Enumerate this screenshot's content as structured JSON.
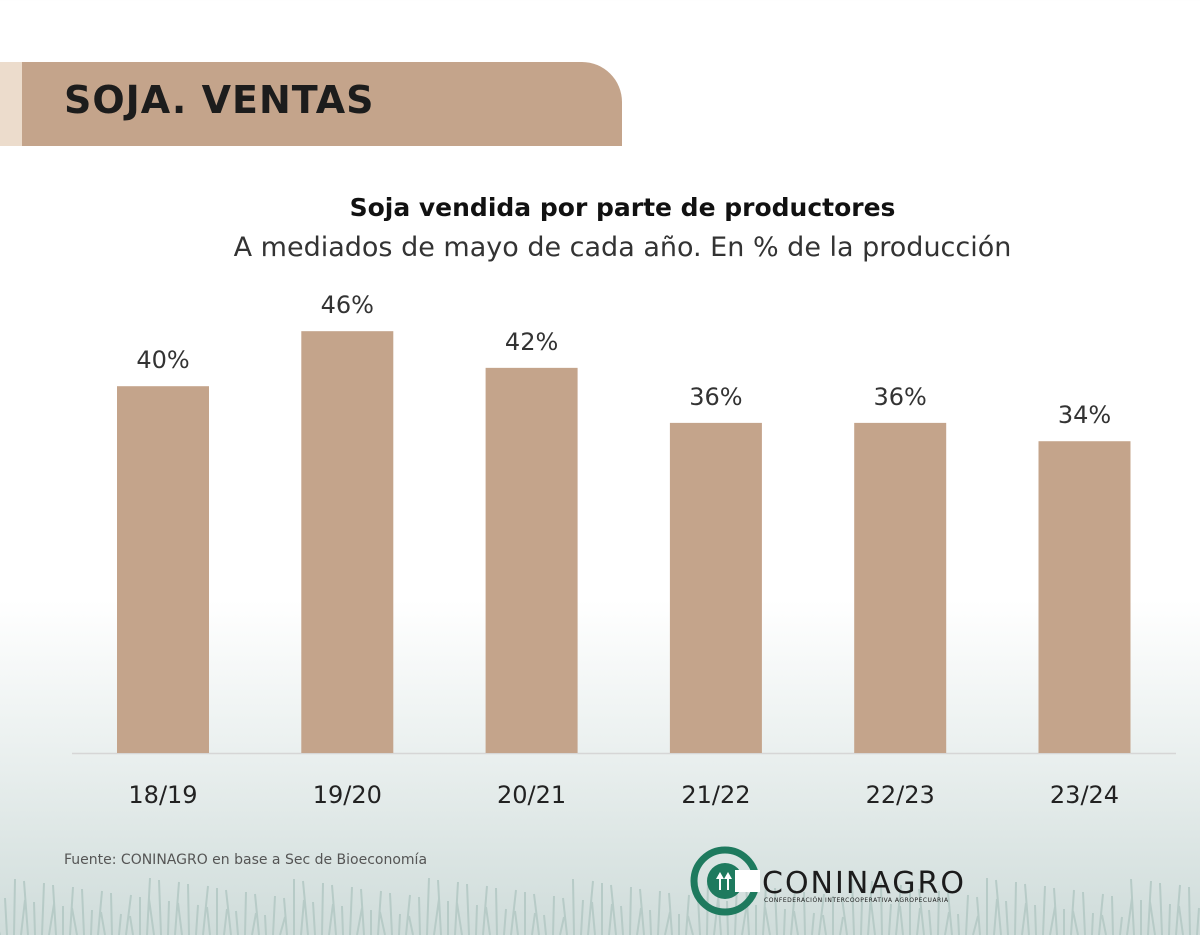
{
  "header": {
    "title": "SOJA. VENTAS"
  },
  "chart_data": {
    "type": "bar",
    "title": "Soja vendida por parte de productores",
    "subtitle": "A mediados de mayo de cada año. En % de la producción",
    "categories": [
      "18/19",
      "19/20",
      "20/21",
      "21/22",
      "22/23",
      "23/24"
    ],
    "values": [
      40,
      46,
      42,
      36,
      36,
      34
    ],
    "data_labels": [
      "40%",
      "46%",
      "42%",
      "36%",
      "36%",
      "34%"
    ],
    "xlabel": "",
    "ylabel": "",
    "ylim": [
      0,
      50
    ],
    "grid": false,
    "bar_color": "#c4a48b"
  },
  "footer": {
    "source": "Fuente: CONINAGRO en base a Sec de Bioeconomía",
    "logo_name": "CONINAGRO",
    "logo_tagline": "Confederación Intercooperativa Agropecuaria"
  },
  "colors": {
    "brand_green": "#1e7a5e",
    "header_band": "#c4a48b",
    "header_accent": "#ecdccc"
  }
}
